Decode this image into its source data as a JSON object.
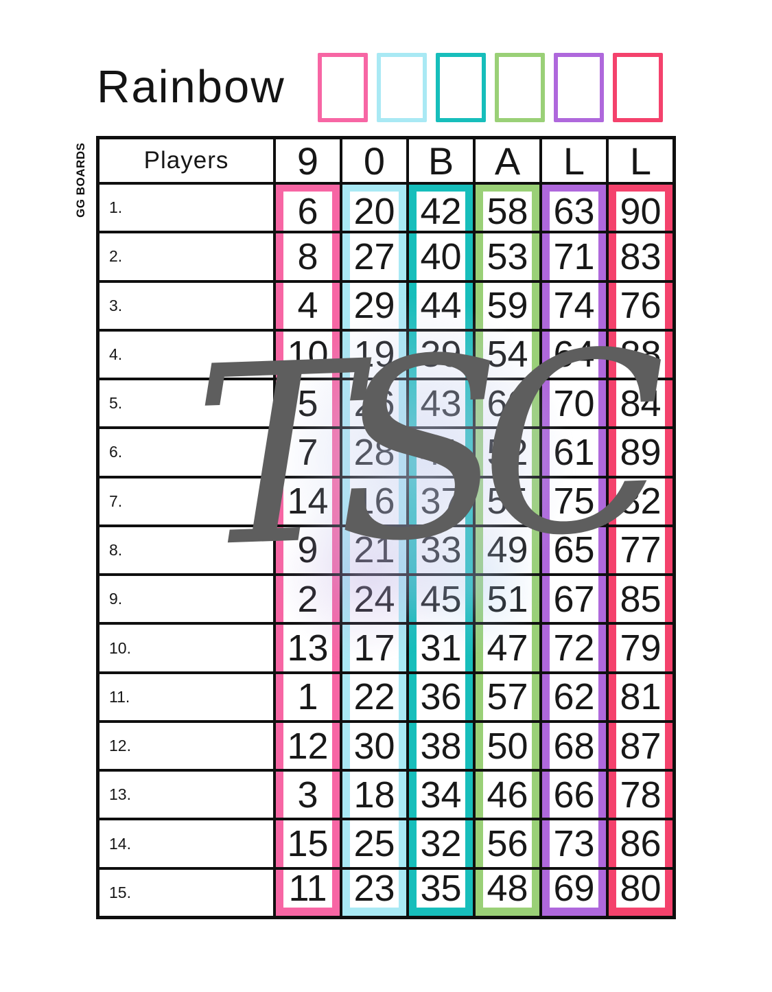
{
  "page": {
    "title": "Rainbow",
    "side_label": "GG BOARDS",
    "watermark": "TSC"
  },
  "palette": {
    "pink": "#F766A4",
    "cyan": "#A9E9F4",
    "teal": "#17BEBB",
    "green": "#9AD077",
    "purple": "#AF68DC",
    "red": "#F4426C"
  },
  "swatches": [
    "pink",
    "cyan",
    "teal",
    "green",
    "purple",
    "red"
  ],
  "board": {
    "players_header": "Players",
    "columns": [
      {
        "letter": "9",
        "color": "pink"
      },
      {
        "letter": "0",
        "color": "cyan"
      },
      {
        "letter": "B",
        "color": "teal"
      },
      {
        "letter": "A",
        "color": "green"
      },
      {
        "letter": "L",
        "color": "purple"
      },
      {
        "letter": "L",
        "color": "red"
      }
    ],
    "rows": [
      {
        "label": "1.",
        "numbers": [
          6,
          20,
          42,
          58,
          63,
          90
        ]
      },
      {
        "label": "2.",
        "numbers": [
          8,
          27,
          40,
          53,
          71,
          83
        ]
      },
      {
        "label": "3.",
        "numbers": [
          4,
          29,
          44,
          59,
          74,
          76
        ]
      },
      {
        "label": "4.",
        "numbers": [
          10,
          19,
          39,
          54,
          64,
          88
        ]
      },
      {
        "label": "5.",
        "numbers": [
          5,
          26,
          43,
          60,
          70,
          84
        ]
      },
      {
        "label": "6.",
        "numbers": [
          7,
          28,
          41,
          52,
          61,
          89
        ]
      },
      {
        "label": "7.",
        "numbers": [
          14,
          16,
          37,
          55,
          75,
          82
        ]
      },
      {
        "label": "8.",
        "numbers": [
          9,
          21,
          33,
          49,
          65,
          77
        ]
      },
      {
        "label": "9.",
        "numbers": [
          2,
          24,
          45,
          51,
          67,
          85
        ]
      },
      {
        "label": "10.",
        "numbers": [
          13,
          17,
          31,
          47,
          72,
          79
        ]
      },
      {
        "label": "11.",
        "numbers": [
          1,
          22,
          36,
          57,
          62,
          81
        ]
      },
      {
        "label": "12.",
        "numbers": [
          12,
          30,
          38,
          50,
          68,
          87
        ]
      },
      {
        "label": "13.",
        "numbers": [
          3,
          18,
          34,
          46,
          66,
          78
        ]
      },
      {
        "label": "14.",
        "numbers": [
          15,
          25,
          32,
          56,
          73,
          86
        ]
      },
      {
        "label": "15.",
        "numbers": [
          11,
          23,
          35,
          48,
          69,
          80
        ]
      }
    ]
  }
}
